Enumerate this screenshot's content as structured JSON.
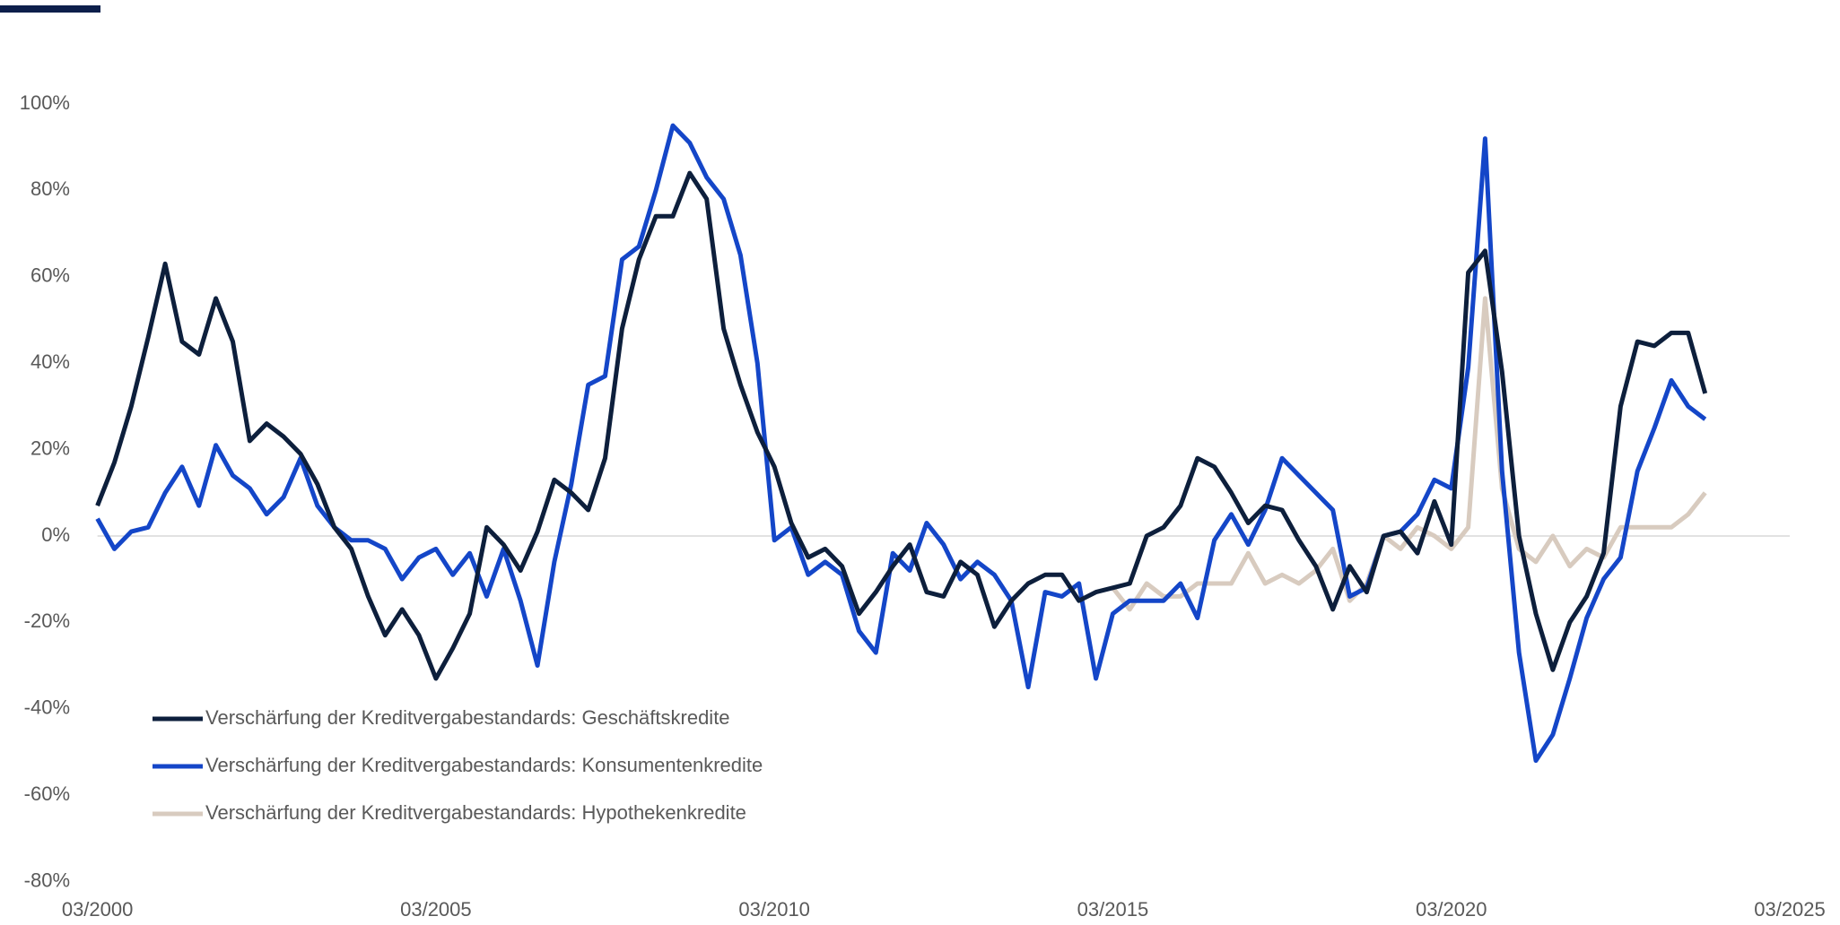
{
  "chart_data": {
    "type": "line",
    "categories": [
      "03/2000",
      null,
      null,
      null,
      null,
      null,
      null,
      null,
      null,
      null,
      null,
      null,
      null,
      null,
      null,
      null,
      null,
      null,
      null,
      null,
      "03/2005",
      null,
      null,
      null,
      null,
      null,
      null,
      null,
      null,
      null,
      null,
      null,
      null,
      null,
      null,
      null,
      null,
      null,
      null,
      null,
      "03/2010",
      null,
      null,
      null,
      null,
      null,
      null,
      null,
      null,
      null,
      null,
      null,
      null,
      null,
      null,
      null,
      null,
      null,
      null,
      null,
      "03/2015",
      null,
      null,
      null,
      null,
      null,
      null,
      null,
      null,
      null,
      null,
      null,
      null,
      null,
      null,
      null,
      null,
      null,
      null,
      null,
      "03/2020",
      null,
      null,
      null,
      null,
      null,
      null,
      null,
      null,
      null,
      null,
      null,
      null,
      null,
      null,
      null,
      null,
      null,
      null,
      null,
      "03/2025"
    ],
    "series": [
      {
        "name": "Verschärfung der Kreditvergabestandards: Geschäftskredite",
        "color": "#0d1f3c",
        "values": [
          7,
          17,
          30,
          46,
          63,
          45,
          42,
          55,
          45,
          22,
          26,
          23,
          19,
          12,
          2,
          -3,
          -14,
          -23,
          -17,
          -23,
          -33,
          -26,
          -18,
          2,
          -2,
          -8,
          1,
          13,
          10,
          6,
          18,
          48,
          64,
          74,
          74,
          84,
          78,
          48,
          35,
          24,
          16,
          3,
          -5,
          -3,
          -7,
          -18,
          -13,
          -7,
          -2,
          -13,
          -14,
          -6,
          -9,
          -21,
          -15,
          -11,
          -9,
          -9,
          -15,
          -13,
          -12,
          -11,
          0,
          2,
          7,
          18,
          16,
          10,
          3,
          7,
          6,
          -1,
          -7,
          -17,
          -7,
          -13,
          0,
          1,
          -4,
          8,
          -2,
          61,
          66,
          38,
          0,
          -18,
          -31,
          -20,
          -14,
          -4,
          30,
          45,
          44,
          47,
          47,
          33,
          null,
          null,
          null,
          null,
          null
        ]
      },
      {
        "name": "Verschärfung der Kreditvergabestandards: Konsumentenkredite",
        "color": "#1446c8",
        "values": [
          4,
          -3,
          1,
          2,
          10,
          16,
          7,
          21,
          14,
          11,
          5,
          9,
          18,
          7,
          2,
          -1,
          -1,
          -3,
          -10,
          -5,
          -3,
          -9,
          -4,
          -14,
          -3,
          -15,
          -30,
          -6,
          12,
          35,
          37,
          64,
          67,
          80,
          95,
          91,
          83,
          78,
          65,
          40,
          -1,
          2,
          -9,
          -6,
          -9,
          -22,
          -27,
          -4,
          -8,
          3,
          -2,
          -10,
          -6,
          -9,
          -15,
          -35,
          -13,
          -14,
          -11,
          -33,
          -18,
          -15,
          -15,
          -15,
          -11,
          -19,
          -1,
          5,
          -2,
          6,
          18,
          14,
          10,
          6,
          -14,
          -12,
          0,
          1,
          5,
          13,
          11,
          39,
          92,
          15,
          -27,
          -52,
          -46,
          -33,
          -19,
          -10,
          -5,
          15,
          25,
          36,
          30,
          27,
          null,
          null,
          null,
          null,
          null
        ]
      },
      {
        "name": "Verschärfung der Kreditvergabestandards: Hypothekenkredite",
        "color": "#d8cbbf",
        "values": [
          null,
          null,
          null,
          null,
          null,
          null,
          null,
          null,
          null,
          null,
          null,
          null,
          null,
          null,
          null,
          null,
          null,
          null,
          null,
          null,
          null,
          null,
          null,
          null,
          null,
          null,
          null,
          null,
          null,
          null,
          null,
          null,
          null,
          null,
          null,
          null,
          null,
          null,
          null,
          null,
          null,
          null,
          null,
          null,
          null,
          null,
          null,
          null,
          null,
          null,
          null,
          null,
          null,
          null,
          null,
          null,
          null,
          null,
          null,
          null,
          -12,
          -17,
          -11,
          -14,
          -14,
          -11,
          -11,
          -11,
          -4,
          -11,
          -9,
          -11,
          -8,
          -3,
          -15,
          -11,
          0,
          -3,
          2,
          0,
          -3,
          2,
          55,
          11,
          -3,
          -6,
          0,
          -7,
          -3,
          -5,
          2,
          2,
          2,
          2,
          5,
          10,
          null,
          null,
          null,
          null,
          null
        ]
      }
    ],
    "ylim": [
      -80,
      100
    ],
    "yticks": [
      {
        "value": -80,
        "label": "-80%"
      },
      {
        "value": -60,
        "label": "-60%"
      },
      {
        "value": -40,
        "label": "-40%"
      },
      {
        "value": -20,
        "label": "-20%"
      },
      {
        "value": 0,
        "label": "0%"
      },
      {
        "value": 20,
        "label": "20%"
      },
      {
        "value": 40,
        "label": "40%"
      },
      {
        "value": 60,
        "label": "60%"
      },
      {
        "value": 80,
        "label": "80%"
      },
      {
        "value": 100,
        "label": "100%"
      }
    ],
    "legend": "lower left"
  }
}
